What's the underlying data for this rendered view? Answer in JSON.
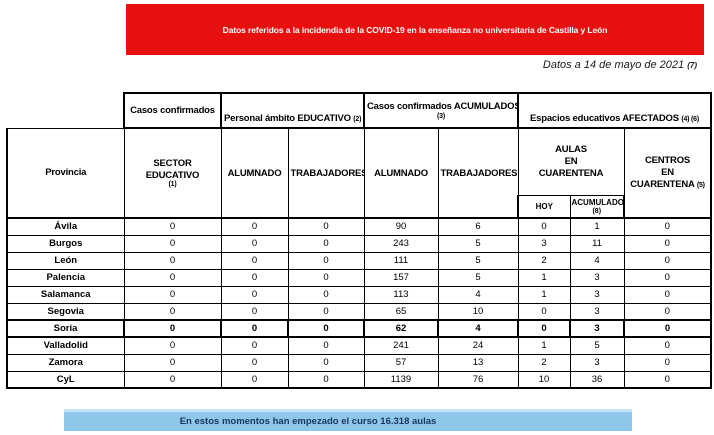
{
  "header_banner": {
    "text": "Datos referidos a la incidendia de la COVID-19 en la enseñanza no universitaria de Castilla y León",
    "bg_color": "#E8100F",
    "text_color": "#FFFFFF"
  },
  "date_note": {
    "text": "Datos a 14 de mayo de 2021",
    "note": "(7)"
  },
  "table": {
    "provincia_header": "Provincia",
    "groups": {
      "confirmed": "Casos confirmados",
      "personal": "Personal ámbito EDUCATIVO",
      "personal_note": "(2)",
      "accumulated": "Casos confirmados ACUMULADOS",
      "accumulated_note": "(3)",
      "spaces": "Espacios educativos AFECTADOS",
      "spaces_note": "(4) (6)"
    },
    "subheaders": {
      "sector": "SECTOR EDUCATIVO",
      "sector_note": "(1)",
      "alumnado_personal": "ALUMNADO",
      "trabajadores_personal": "TRABAJADORES",
      "alumnado_acumulado": "ALUMNADO",
      "trabajadores_acumulado": "TRABAJADORES",
      "aulas_lines": [
        "AULAS",
        "EN",
        "CUARENTENA"
      ],
      "hoy": "HOY",
      "acumulado": "ACUMULADO",
      "acumulado_note": "(8)",
      "centros_lines": [
        "CENTROS",
        "EN",
        "CUARENTENA"
      ],
      "centros_note": "(5)"
    },
    "rows": [
      {
        "provincia": "Ávila",
        "values": [
          "0",
          "0",
          "0",
          "90",
          "6",
          "0",
          "1",
          "0"
        ],
        "highlight": false
      },
      {
        "provincia": "Burgos",
        "values": [
          "0",
          "0",
          "0",
          "243",
          "5",
          "3",
          "11",
          "0"
        ],
        "highlight": false
      },
      {
        "provincia": "León",
        "values": [
          "0",
          "0",
          "0",
          "111",
          "5",
          "2",
          "4",
          "0"
        ],
        "highlight": false
      },
      {
        "provincia": "Palencia",
        "values": [
          "0",
          "0",
          "0",
          "157",
          "5",
          "1",
          "3",
          "0"
        ],
        "highlight": false
      },
      {
        "provincia": "Salamanca",
        "values": [
          "0",
          "0",
          "0",
          "113",
          "4",
          "1",
          "3",
          "0"
        ],
        "highlight": false
      },
      {
        "provincia": "Segovia",
        "values": [
          "0",
          "0",
          "0",
          "65",
          "10",
          "0",
          "3",
          "0"
        ],
        "highlight": false
      },
      {
        "provincia": "Soria",
        "values": [
          "0",
          "0",
          "0",
          "62",
          "4",
          "0",
          "3",
          "0"
        ],
        "highlight": true
      },
      {
        "provincia": "Valladolid",
        "values": [
          "0",
          "0",
          "0",
          "241",
          "24",
          "1",
          "5",
          "0"
        ],
        "highlight": false
      },
      {
        "provincia": "Zamora",
        "values": [
          "0",
          "0",
          "0",
          "57",
          "13",
          "2",
          "3",
          "0"
        ],
        "highlight": false
      },
      {
        "provincia": "CyL",
        "values": [
          "0",
          "0",
          "0",
          "1139",
          "76",
          "10",
          "36",
          "0"
        ],
        "highlight": false
      }
    ]
  },
  "footer_banner": {
    "text": "En estos momentos han empezado el curso 16.318 aulas",
    "bg_color": "#8EC7E8",
    "text_color": "#17365D"
  }
}
